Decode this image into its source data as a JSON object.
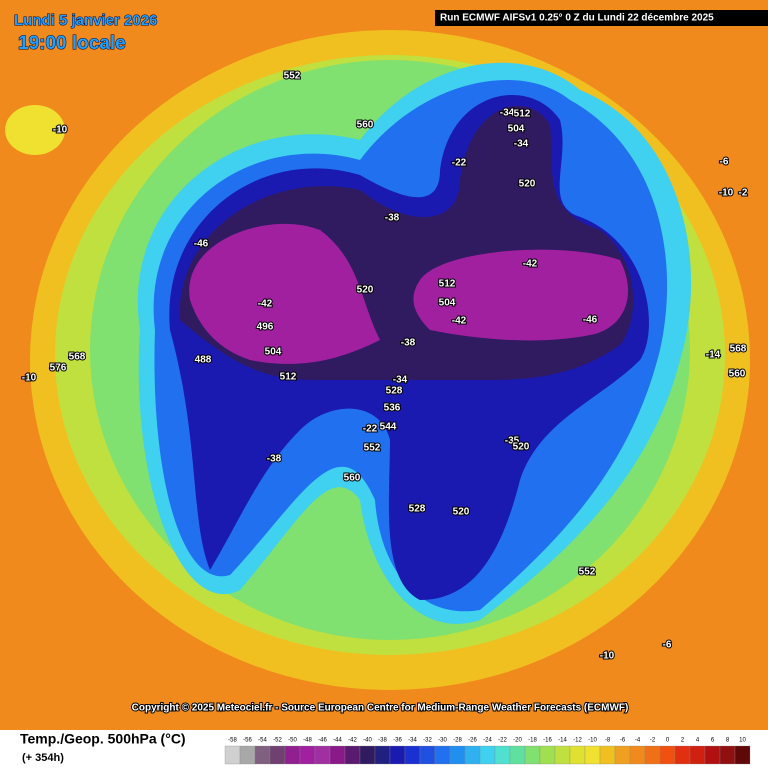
{
  "header": {
    "date": "Lundi 5 janvier 2026",
    "time": "19:00 locale",
    "run": "Run ECMWF AIFSv1 0.25° 0 Z du Lundi 22 décembre 2025"
  },
  "map": {
    "labels": [
      "552",
      "560",
      "-10",
      "-22",
      "-34",
      "512",
      "504",
      "-34",
      "520",
      "-38",
      "-6",
      "-10",
      "-2",
      "-46",
      "-42",
      "520",
      "512",
      "504",
      "-42",
      "-46",
      "-42",
      "496",
      "504",
      "488",
      "-38",
      "512",
      "-34",
      "528",
      "536",
      "544",
      "-22",
      "552",
      "-35",
      "520",
      "-38",
      "560",
      "528",
      "520",
      "552",
      "-10",
      "-6",
      "568",
      "576",
      "-10",
      "-14",
      "568",
      "560"
    ]
  },
  "copyright": "Copyright © 2025 Meteociel.fr - Source European Centre for Medium-Range Weather Forecasts (ECMWF)",
  "legend": {
    "title": "Temp./Geop. 500hPa (°C)",
    "lead": "(+ 354h)",
    "ticks": [
      -58,
      -56,
      -54,
      -52,
      -50,
      -48,
      -46,
      -44,
      -42,
      -40,
      -38,
      -36,
      -34,
      -32,
      -30,
      -28,
      -26,
      -24,
      -22,
      -20,
      -18,
      -16,
      -14,
      -12,
      -10,
      -8,
      -6,
      -4,
      -2,
      0,
      2,
      4,
      6,
      8,
      10
    ],
    "colors": [
      "#d0d0d0",
      "#a8a8a8",
      "#806080",
      "#704070",
      "#902090",
      "#a020a0",
      "#a030a0",
      "#8a1a8a",
      "#5a1a70",
      "#301a60",
      "#202080",
      "#1a1ab0",
      "#1a30d0",
      "#2050e0",
      "#2070f0",
      "#2090f0",
      "#30b0f0",
      "#40d0f0",
      "#50e0d0",
      "#60e0a0",
      "#80e070",
      "#a0e050",
      "#c0e040",
      "#e0e030",
      "#f0e030",
      "#f0c020",
      "#f0a020",
      "#f08a1c",
      "#f07018",
      "#f05010",
      "#e03010",
      "#d02010",
      "#b01010",
      "#901010",
      "#600808"
    ]
  }
}
